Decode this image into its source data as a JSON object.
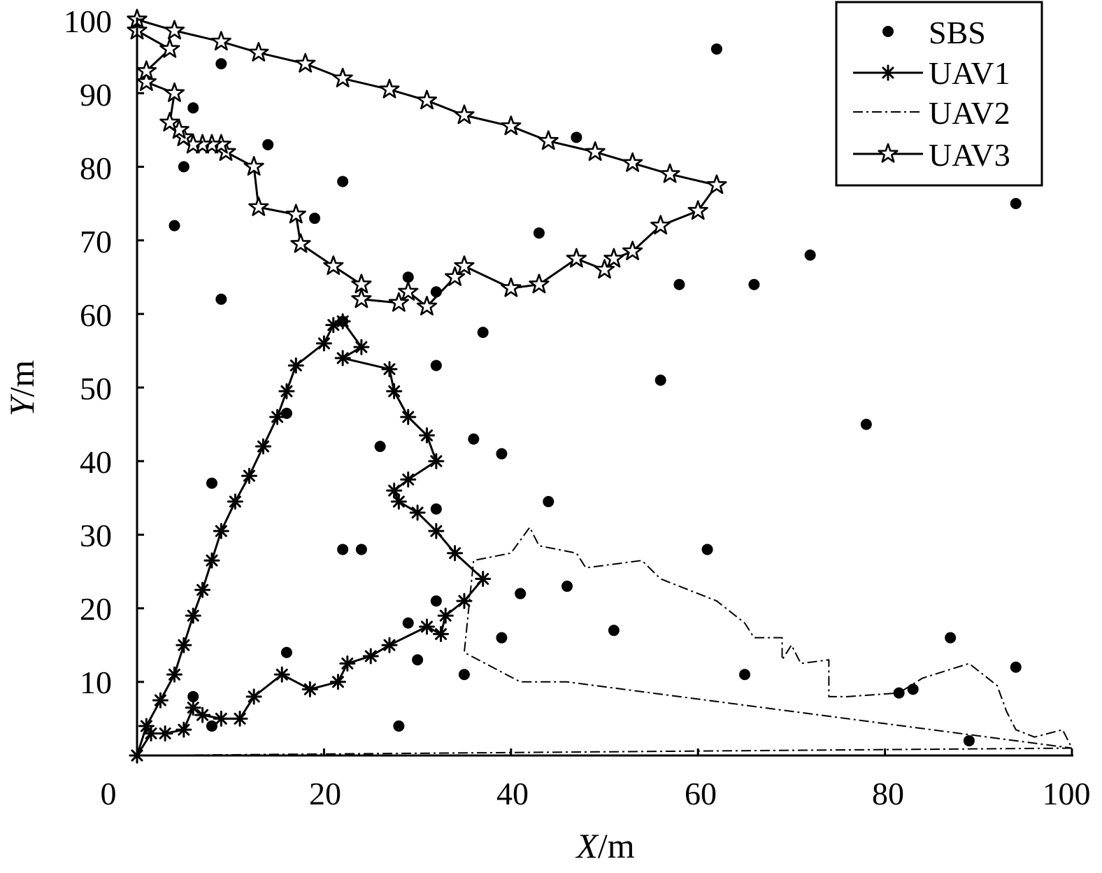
{
  "chart_data": {
    "type": "scatter",
    "xlabel": {
      "var": "X",
      "unit": "/m"
    },
    "ylabel": {
      "var": "Y",
      "unit": "/m"
    },
    "xlim": [
      0,
      100
    ],
    "ylim": [
      0,
      100
    ],
    "xticks": [
      "0",
      "20",
      "40",
      "60",
      "80",
      "100"
    ],
    "yticks": [
      "10",
      "20",
      "30",
      "40",
      "50",
      "60",
      "70",
      "80",
      "90",
      "100"
    ],
    "legend_position": "top-right",
    "legend": [
      "SBS",
      "UAV1",
      "UAV2",
      "UAV3"
    ],
    "series": [
      {
        "name": "SBS",
        "kind": "points",
        "points": [
          [
            9,
            94
          ],
          [
            6,
            88
          ],
          [
            14,
            83
          ],
          [
            5,
            80
          ],
          [
            4,
            72
          ],
          [
            9,
            62
          ],
          [
            22,
            78
          ],
          [
            19,
            73
          ],
          [
            29,
            65
          ],
          [
            32,
            63
          ],
          [
            47,
            84
          ],
          [
            43,
            71
          ],
          [
            62,
            96
          ],
          [
            94,
            75
          ],
          [
            72,
            68
          ],
          [
            58,
            64
          ],
          [
            66,
            64
          ],
          [
            37,
            57.5
          ],
          [
            32,
            53
          ],
          [
            56,
            51
          ],
          [
            16,
            46.5
          ],
          [
            26,
            42
          ],
          [
            36,
            43
          ],
          [
            39,
            41
          ],
          [
            8,
            37
          ],
          [
            44,
            34.5
          ],
          [
            32,
            33.5
          ],
          [
            22,
            28
          ],
          [
            24,
            28
          ],
          [
            61,
            28
          ],
          [
            78,
            45
          ],
          [
            46,
            23
          ],
          [
            41,
            22
          ],
          [
            32,
            21
          ],
          [
            29,
            18
          ],
          [
            51,
            17
          ],
          [
            39,
            16
          ],
          [
            87,
            16
          ],
          [
            16,
            14
          ],
          [
            30,
            13
          ],
          [
            35,
            11
          ],
          [
            65,
            11
          ],
          [
            94,
            12
          ],
          [
            81.5,
            8.5
          ],
          [
            83,
            9
          ],
          [
            89,
            2
          ],
          [
            6,
            8
          ],
          [
            8,
            4
          ],
          [
            28,
            4
          ],
          [
            22,
            59
          ]
        ]
      },
      {
        "name": "UAV1",
        "kind": "line",
        "marker": "asterisk",
        "points": [
          [
            0,
            0
          ],
          [
            1,
            4
          ],
          [
            2.5,
            7.5
          ],
          [
            4,
            11
          ],
          [
            5,
            15
          ],
          [
            6,
            19
          ],
          [
            7,
            22.5
          ],
          [
            8,
            26.5
          ],
          [
            9,
            30.5
          ],
          [
            10.5,
            34.5
          ],
          [
            12,
            38
          ],
          [
            13.5,
            42
          ],
          [
            15,
            46
          ],
          [
            16,
            49.5
          ],
          [
            17,
            53
          ],
          [
            20,
            56
          ],
          [
            21,
            58.5
          ],
          [
            22,
            59
          ],
          [
            24,
            55.5
          ],
          [
            22,
            54
          ],
          [
            27,
            52.5
          ],
          [
            27.5,
            49.5
          ],
          [
            29,
            46
          ],
          [
            31,
            43.5
          ],
          [
            32,
            40
          ],
          [
            29,
            37.5
          ],
          [
            27.5,
            36
          ],
          [
            28,
            34.5
          ],
          [
            30,
            33
          ],
          [
            32,
            30.5
          ],
          [
            34,
            27.5
          ],
          [
            37,
            24
          ],
          [
            35,
            21
          ],
          [
            33,
            19
          ],
          [
            32.5,
            16.5
          ],
          [
            31,
            17.5
          ],
          [
            27,
            15
          ],
          [
            25,
            13.5
          ],
          [
            22.5,
            12.5
          ],
          [
            21.5,
            10
          ],
          [
            18.5,
            9
          ],
          [
            15.5,
            11
          ],
          [
            12.5,
            8
          ],
          [
            11,
            5
          ],
          [
            9,
            5
          ],
          [
            7,
            5.5
          ],
          [
            6,
            6.5
          ],
          [
            5,
            3.5
          ],
          [
            3,
            3
          ],
          [
            1.5,
            3
          ],
          [
            0,
            0
          ]
        ]
      },
      {
        "name": "UAV2",
        "kind": "line",
        "marker": "none",
        "points": [
          [
            0,
            0
          ],
          [
            100,
            1
          ],
          [
            99,
            3.5
          ],
          [
            96,
            2.5
          ],
          [
            94,
            3.5
          ],
          [
            93,
            6
          ],
          [
            92,
            9.5
          ],
          [
            89,
            12.5
          ],
          [
            84,
            10.5
          ],
          [
            81.5,
            8.5
          ],
          [
            76,
            8
          ],
          [
            74,
            8
          ],
          [
            74,
            13
          ],
          [
            71,
            12.5
          ],
          [
            70,
            15
          ],
          [
            69,
            13
          ],
          [
            69,
            16
          ],
          [
            67,
            16
          ],
          [
            66,
            16
          ],
          [
            65,
            18
          ],
          [
            62,
            21
          ],
          [
            59,
            22.5
          ],
          [
            56,
            24
          ],
          [
            54,
            26.5
          ],
          [
            48,
            25.5
          ],
          [
            47,
            27.5
          ],
          [
            43,
            28.5
          ],
          [
            42,
            31
          ],
          [
            40,
            27.5
          ],
          [
            38,
            27
          ],
          [
            36,
            26.5
          ],
          [
            35,
            14
          ],
          [
            38,
            12
          ],
          [
            41,
            10
          ],
          [
            46,
            10
          ],
          [
            100,
            1
          ]
        ]
      },
      {
        "name": "UAV3",
        "kind": "line",
        "marker": "star",
        "points": [
          [
            0,
            100
          ],
          [
            4,
            98.5
          ],
          [
            9,
            97
          ],
          [
            13,
            95.5
          ],
          [
            18,
            94
          ],
          [
            22,
            92
          ],
          [
            27,
            90.5
          ],
          [
            31,
            89
          ],
          [
            35,
            87
          ],
          [
            40,
            85.5
          ],
          [
            44,
            83.5
          ],
          [
            49,
            82
          ],
          [
            53,
            80.5
          ],
          [
            57,
            79
          ],
          [
            62,
            77.5
          ],
          [
            60,
            74
          ],
          [
            56,
            72
          ],
          [
            53,
            68.5
          ],
          [
            51,
            67.5
          ],
          [
            50,
            66
          ],
          [
            47,
            67.5
          ],
          [
            43,
            64
          ],
          [
            40,
            63.5
          ],
          [
            35,
            66.5
          ],
          [
            34,
            65
          ],
          [
            31,
            61
          ],
          [
            29,
            63
          ],
          [
            28,
            61.5
          ],
          [
            24,
            62
          ],
          [
            24,
            64
          ],
          [
            21,
            66.5
          ],
          [
            17.5,
            69.5
          ],
          [
            17,
            73.5
          ],
          [
            13,
            74.5
          ],
          [
            12.5,
            80
          ],
          [
            9.5,
            82
          ],
          [
            9,
            83
          ],
          [
            8,
            83
          ],
          [
            7,
            83
          ],
          [
            6,
            83
          ],
          [
            5,
            84
          ],
          [
            4.5,
            85
          ],
          [
            3.5,
            86
          ],
          [
            4,
            90
          ],
          [
            1,
            91.5
          ],
          [
            1,
            93
          ],
          [
            3.5,
            96
          ],
          [
            0,
            98.5
          ],
          [
            0,
            100
          ]
        ]
      }
    ]
  }
}
